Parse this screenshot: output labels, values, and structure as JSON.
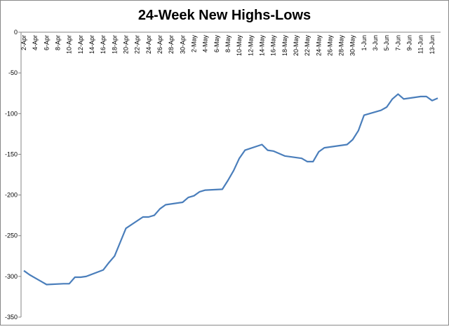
{
  "chart_data": {
    "type": "line",
    "title": "24-Week New Highs-Lows",
    "categories": [
      "2-Apr",
      null,
      "4-Apr",
      null,
      "6-Apr",
      null,
      "8-Apr",
      null,
      "10-Apr",
      null,
      "12-Apr",
      null,
      "14-Apr",
      null,
      "16-Apr",
      null,
      "18-Apr",
      null,
      "20-Apr",
      null,
      "22-Apr",
      null,
      "24-Apr",
      null,
      "26-Apr",
      null,
      "28-Apr",
      null,
      "30-Apr",
      null,
      "2-May",
      null,
      "4-May",
      null,
      "6-May",
      null,
      "8-May",
      null,
      "10-May",
      null,
      "12-May",
      null,
      "14-May",
      null,
      "16-May",
      null,
      "18-May",
      null,
      "20-May",
      null,
      "22-May",
      null,
      "24-May",
      null,
      "26-May",
      null,
      "28-May",
      null,
      "30-May",
      null,
      "1-Jun",
      null,
      "3-Jun",
      null,
      "5-Jun",
      null,
      "7-Jun",
      null,
      "9-Jun",
      null,
      "11-Jun",
      null,
      "13-Jun",
      null
    ],
    "series": [
      {
        "color": "#4a7ebb",
        "values": [
          -293,
          -298,
          -302,
          -306,
          -310,
          null,
          null,
          -309,
          -309,
          -301,
          -301,
          -300,
          null,
          null,
          -292,
          -283,
          -275,
          -258,
          -241,
          null,
          null,
          -227,
          -227,
          -225,
          -217,
          -212,
          null,
          null,
          -209,
          -203,
          -201,
          -196,
          -194,
          null,
          null,
          -193,
          -182,
          -170,
          -155,
          -145,
          null,
          null,
          -138,
          -145,
          -146,
          -149,
          -152,
          null,
          null,
          -155,
          -159,
          -159,
          -147,
          -142,
          null,
          null,
          null,
          -138,
          -132,
          -121,
          -102,
          null,
          null,
          -96,
          -92,
          -82,
          -76,
          -82,
          null,
          null,
          -79,
          -79,
          -84,
          -81
        ]
      }
    ],
    "connect_gaps": true,
    "ylim": [
      -350,
      0
    ],
    "yticks": [
      0,
      -50,
      -100,
      -150,
      -200,
      -250,
      -300,
      -350
    ],
    "grid": false
  }
}
